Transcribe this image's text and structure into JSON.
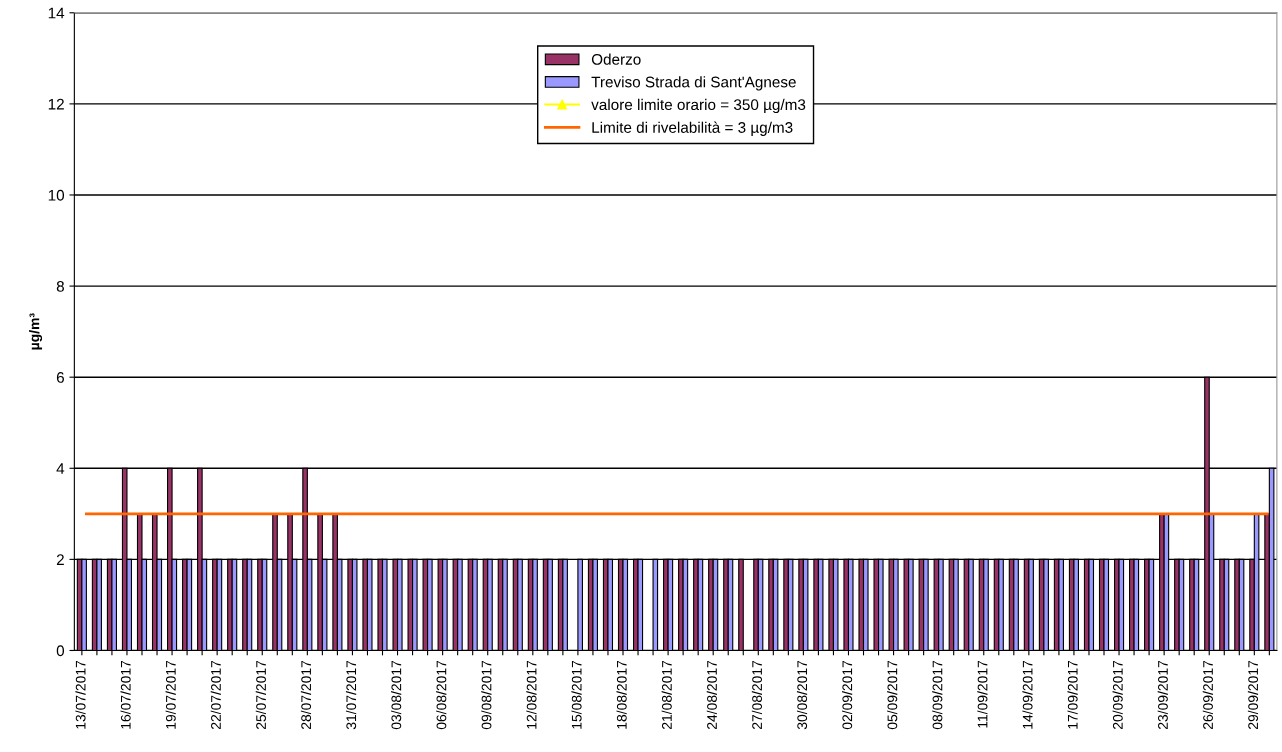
{
  "chart_data": {
    "type": "bar",
    "ylabel": "µg/m³",
    "categories": [
      "13/07/2017",
      null,
      null,
      "16/07/2017",
      null,
      null,
      "19/07/2017",
      null,
      null,
      "22/07/2017",
      null,
      null,
      "25/07/2017",
      null,
      null,
      "28/07/2017",
      null,
      null,
      "31/07/2017",
      null,
      null,
      "03/08/2017",
      null,
      null,
      "06/08/2017",
      null,
      null,
      "09/08/2017",
      null,
      null,
      "12/08/2017",
      null,
      null,
      "15/08/2017",
      null,
      null,
      "18/08/2017",
      null,
      null,
      "21/08/2017",
      null,
      null,
      "24/08/2017",
      null,
      null,
      "27/08/2017",
      null,
      null,
      "30/08/2017",
      null,
      null,
      "02/09/2017",
      null,
      null,
      "05/09/2017",
      null,
      null,
      "08/09/2017",
      null,
      null,
      "11/09/2017",
      null,
      null,
      "14/09/2017",
      null,
      null,
      "17/09/2017",
      null,
      null,
      "20/09/2017",
      null,
      null,
      "23/09/2017",
      null,
      null,
      "26/09/2017",
      null,
      null,
      "29/09/2017",
      null
    ],
    "series": [
      {
        "name": "Oderzo",
        "color": "#993366",
        "values": [
          2,
          2,
          2,
          4,
          3,
          3,
          4,
          2,
          4,
          2,
          2,
          2,
          2,
          3,
          3,
          4,
          3,
          3,
          2,
          2,
          2,
          2,
          2,
          2,
          2,
          2,
          2,
          2,
          2,
          2,
          2,
          2,
          2,
          null,
          2,
          2,
          2,
          2,
          null,
          2,
          2,
          2,
          2,
          2,
          2,
          2,
          2,
          2,
          2,
          2,
          2,
          2,
          2,
          2,
          2,
          2,
          2,
          2,
          2,
          2,
          2,
          2,
          2,
          2,
          2,
          2,
          2,
          2,
          2,
          2,
          2,
          2,
          3,
          2,
          2,
          6,
          2,
          2,
          2,
          3
        ]
      },
      {
        "name": "Treviso Strada di Sant'Agnese",
        "color": "#9999ff",
        "values": [
          2,
          2,
          2,
          2,
          2,
          2,
          2,
          2,
          2,
          2,
          2,
          2,
          2,
          2,
          2,
          2,
          2,
          2,
          2,
          2,
          2,
          2,
          2,
          2,
          2,
          2,
          2,
          2,
          2,
          2,
          2,
          2,
          2,
          2,
          2,
          2,
          2,
          2,
          2,
          2,
          2,
          2,
          2,
          2,
          null,
          2,
          2,
          2,
          2,
          2,
          2,
          2,
          2,
          2,
          2,
          2,
          2,
          2,
          2,
          2,
          2,
          2,
          2,
          2,
          2,
          2,
          2,
          2,
          2,
          2,
          2,
          2,
          3,
          2,
          2,
          3,
          2,
          2,
          3,
          4
        ]
      },
      {
        "name": "valore limite orario = 350 µg/m3",
        "type": "line",
        "color": "#ffff00",
        "marker": "triangle",
        "values": [
          null,
          null,
          null,
          null,
          null,
          null,
          null,
          null,
          null,
          null,
          null,
          null,
          null,
          null,
          null,
          null,
          null,
          null,
          null,
          null,
          null,
          null,
          null,
          null,
          null,
          null,
          null,
          null,
          null,
          null,
          null,
          null,
          null,
          null,
          null,
          null,
          null,
          null,
          null,
          null,
          null,
          null,
          null,
          null,
          null,
          null,
          null,
          null,
          null,
          null,
          null,
          null,
          null,
          null,
          null,
          null,
          null,
          null,
          null,
          null,
          null,
          null,
          null,
          null,
          null,
          null,
          null,
          null,
          null,
          null,
          null,
          null,
          null,
          null,
          null,
          null,
          null,
          null,
          null,
          null
        ]
      }
    ],
    "ref_lines": [
      {
        "axis": "y",
        "value": 3,
        "label": "Limite di rivelabilità = 3 µg/m3",
        "color": "#ff6600"
      }
    ],
    "ylim": [
      0,
      14
    ],
    "yticks": [
      0,
      2,
      4,
      6,
      8,
      10,
      12,
      14
    ],
    "grid": "y",
    "legend": "top"
  }
}
